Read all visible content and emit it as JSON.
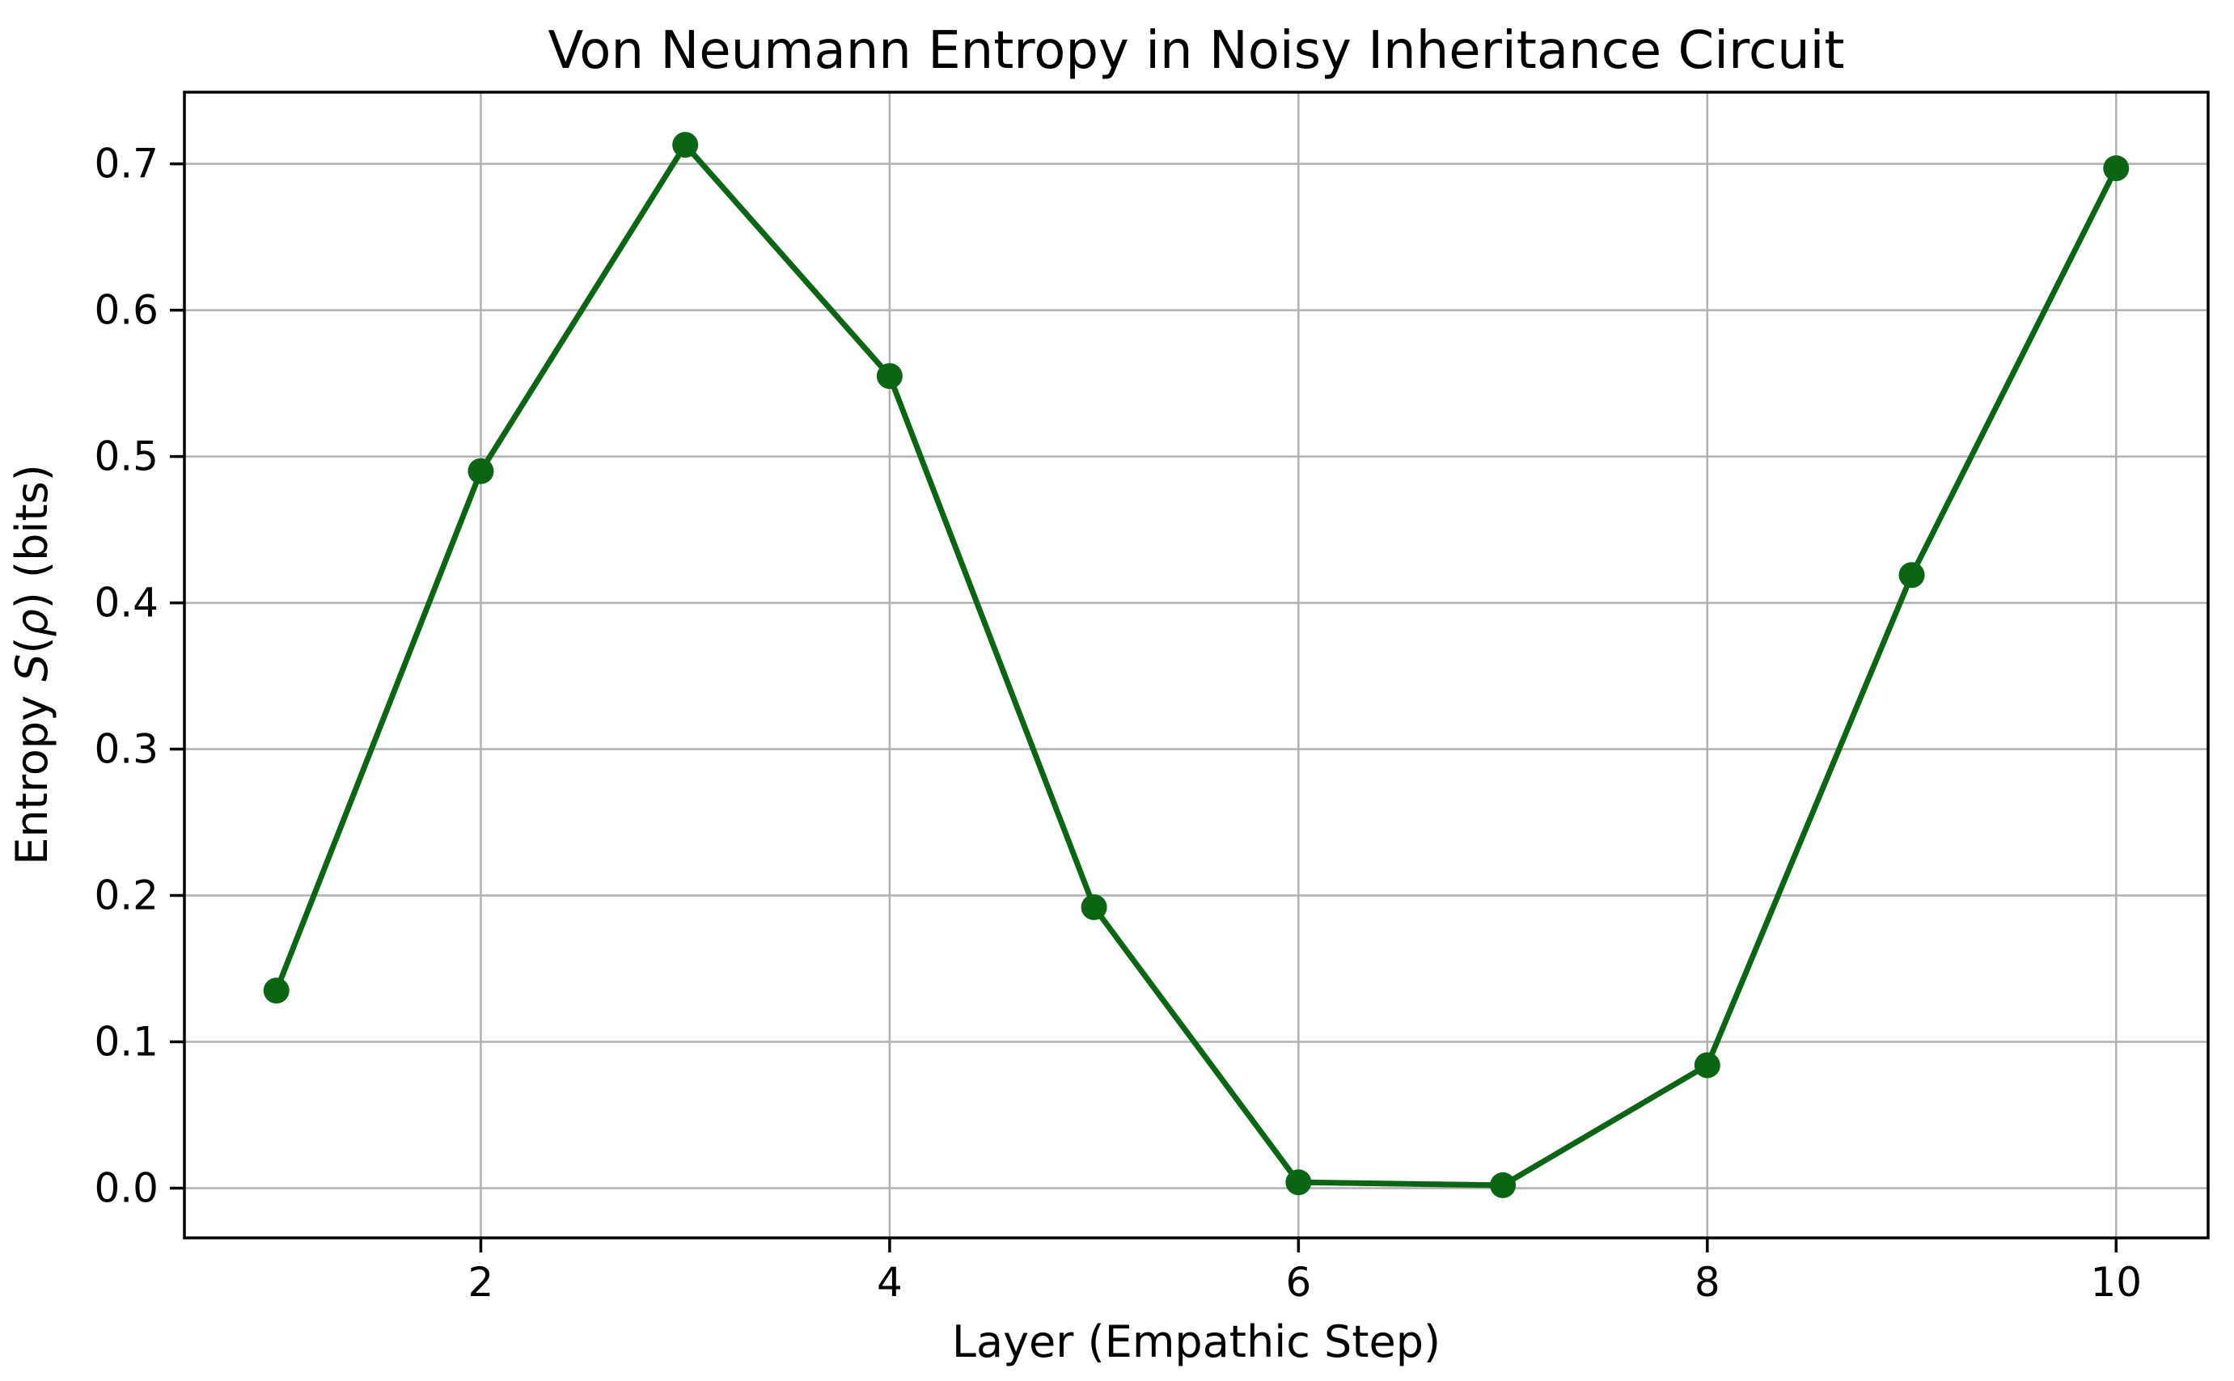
{
  "figure": {
    "background_color": "#ffffff",
    "plot_background_color": "#ffffff"
  },
  "chart_data": {
    "type": "line",
    "title": "Von Neumann Entropy in Noisy Inheritance Circuit",
    "xlabel": "Layer (Empathic Step)",
    "ylabel": "Entropy S(ρ) (bits)",
    "ylabel_parts": [
      {
        "text": "Entropy ",
        "italic": false
      },
      {
        "text": "S",
        "italic": true
      },
      {
        "text": "(",
        "italic": false
      },
      {
        "text": "ρ",
        "italic": true
      },
      {
        "text": ")",
        "italic": false
      },
      {
        "text": " (bits)",
        "italic": false
      }
    ],
    "series": [
      {
        "name": "entropy",
        "x": [
          1,
          2,
          3,
          4,
          5,
          6,
          7,
          8,
          9,
          10
        ],
        "y": [
          0.135,
          0.49,
          0.713,
          0.555,
          0.192,
          0.004,
          0.002,
          0.084,
          0.419,
          0.697
        ],
        "line_color": "#0b6613",
        "marker": "circle",
        "marker_color": "#0b6613"
      }
    ],
    "xlim": [
      0.55,
      10.45
    ],
    "ylim": [
      -0.034,
      0.749
    ],
    "xticks": [
      {
        "value": 2,
        "label": "2"
      },
      {
        "value": 4,
        "label": "4"
      },
      {
        "value": 6,
        "label": "6"
      },
      {
        "value": 8,
        "label": "8"
      },
      {
        "value": 10,
        "label": "10"
      }
    ],
    "yticks": [
      {
        "value": 0.0,
        "label": "0.0"
      },
      {
        "value": 0.1,
        "label": "0.1"
      },
      {
        "value": 0.2,
        "label": "0.2"
      },
      {
        "value": 0.3,
        "label": "0.3"
      },
      {
        "value": 0.4,
        "label": "0.4"
      },
      {
        "value": 0.5,
        "label": "0.5"
      },
      {
        "value": 0.6,
        "label": "0.6"
      },
      {
        "value": 0.7,
        "label": "0.7"
      }
    ],
    "grid": true,
    "grid_color": "#b0b0b0",
    "spine_color": "#000000",
    "tick_color": "#000000",
    "legend": null
  }
}
